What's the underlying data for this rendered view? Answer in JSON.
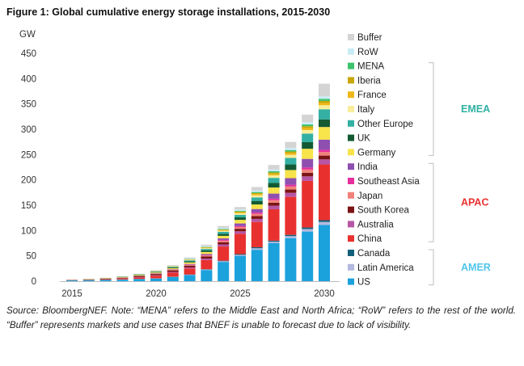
{
  "figure_title": "Figure 1: Global cumulative energy storage installations, 2015-2030",
  "caption": "Source: BloombergNEF. Note: “MENA” refers to the Middle East and North Africa; “RoW” refers to the rest of the world. “Buffer” represents markets and use cases that BNEF is unable to forecast due to lack of visibility.",
  "chart_data": {
    "type": "bar",
    "stacked": true,
    "ylabel": "GW",
    "ylim": [
      0,
      450
    ],
    "yticks": [
      0,
      50,
      100,
      150,
      200,
      250,
      300,
      350,
      400,
      450
    ],
    "xtick_labels": [
      "2015",
      "2020",
      "2025",
      "2030"
    ],
    "categories": [
      "2015",
      "2016",
      "2017",
      "2018",
      "2019",
      "2020",
      "2021",
      "2022",
      "2023",
      "2024",
      "2025",
      "2026",
      "2027",
      "2028",
      "2029",
      "2030"
    ],
    "grid": false,
    "legend_position": "right",
    "series": [
      {
        "name": "US",
        "color": "#1ba1dc",
        "values": [
          1.5,
          2,
          2.5,
          3,
          4,
          5,
          8,
          12,
          22,
          38,
          50,
          62,
          75,
          85,
          98,
          111
        ]
      },
      {
        "name": "Latin America",
        "color": "#b3b9df",
        "values": [
          0.1,
          0.1,
          0.2,
          0.2,
          0.3,
          0.4,
          0.5,
          0.7,
          1,
          1.5,
          2,
          3,
          3,
          4,
          5,
          6
        ]
      },
      {
        "name": "Canada",
        "color": "#14607a",
        "values": [
          0.1,
          0.1,
          0.1,
          0.2,
          0.2,
          0.3,
          0.4,
          0.5,
          0.7,
          1,
          1.5,
          2,
          2,
          2.5,
          3,
          3.5
        ]
      },
      {
        "name": "China",
        "color": "#e8312f",
        "values": [
          0.5,
          0.8,
          1.2,
          2,
          3,
          5,
          8,
          12,
          18,
          28,
          40,
          50,
          62,
          75,
          92,
          110
        ]
      },
      {
        "name": "Australia",
        "color": "#b756a5",
        "values": [
          0.1,
          0.1,
          0.2,
          0.3,
          0.5,
          1,
          1.5,
          2,
          3,
          4,
          5,
          6,
          7,
          8,
          9,
          10
        ]
      },
      {
        "name": "South Korea",
        "color": "#7b1414",
        "values": [
          0.2,
          0.4,
          0.7,
          1,
          2,
          2.5,
          3,
          3.5,
          4,
          4.5,
          5,
          5.5,
          6,
          6.5,
          7,
          7.5
        ]
      },
      {
        "name": "Japan",
        "color": "#f0827a",
        "values": [
          0.1,
          0.1,
          0.2,
          0.3,
          0.5,
          0.8,
          1,
          1.5,
          2,
          3,
          3.5,
          4.5,
          5,
          6,
          6.5,
          7
        ]
      },
      {
        "name": "Southeast Asia",
        "color": "#e62e9d",
        "values": [
          0,
          0,
          0.1,
          0.1,
          0.2,
          0.3,
          0.5,
          0.7,
          1,
          1.5,
          2,
          2.5,
          3,
          3.5,
          4,
          4.5
        ]
      },
      {
        "name": "India",
        "color": "#8e4fb0",
        "values": [
          0,
          0,
          0,
          0.1,
          0.2,
          0.4,
          0.7,
          1.2,
          2,
          3,
          5,
          7,
          10,
          13,
          17,
          20
        ]
      },
      {
        "name": "Germany",
        "color": "#f7e34b",
        "values": [
          0.2,
          0.3,
          0.5,
          0.7,
          1,
          1.5,
          2,
          3,
          4,
          5,
          7,
          9,
          12,
          16,
          20,
          25
        ]
      },
      {
        "name": "UK",
        "color": "#135a33",
        "values": [
          0.1,
          0.2,
          0.3,
          0.5,
          0.8,
          1,
          1.5,
          2,
          3,
          4,
          5,
          7,
          9,
          11,
          13,
          15
        ]
      },
      {
        "name": "Other Europe",
        "color": "#33b0a3",
        "values": [
          0.1,
          0.2,
          0.3,
          0.4,
          0.6,
          0.8,
          1,
          2,
          3,
          4,
          5,
          7,
          10,
          13,
          17,
          20
        ]
      },
      {
        "name": "Italy",
        "color": "#f8ee9a",
        "values": [
          0,
          0.1,
          0.1,
          0.2,
          0.3,
          0.4,
          0.6,
          1,
          1.5,
          2,
          3,
          4,
          5,
          6,
          7,
          8
        ]
      },
      {
        "name": "France",
        "color": "#efb817",
        "values": [
          0,
          0.1,
          0.1,
          0.2,
          0.3,
          0.4,
          0.5,
          0.7,
          1,
          1.5,
          2,
          2.5,
          3,
          3.5,
          4,
          4.5
        ]
      },
      {
        "name": "Iberia",
        "color": "#c9a708",
        "values": [
          0,
          0,
          0.1,
          0.1,
          0.2,
          0.3,
          0.4,
          0.5,
          0.7,
          1,
          1.5,
          2,
          2.5,
          3,
          3.5,
          4
        ]
      },
      {
        "name": "MENA",
        "color": "#3cc26a",
        "values": [
          0,
          0,
          0,
          0.1,
          0.1,
          0.2,
          0.3,
          0.5,
          0.7,
          1,
          1.5,
          2,
          2.5,
          3,
          3.5,
          4
        ]
      },
      {
        "name": "RoW",
        "color": "#c9ecf5",
        "values": [
          0.1,
          0.1,
          0.2,
          0.3,
          0.4,
          0.5,
          0.7,
          1,
          1.5,
          2,
          2.5,
          3,
          3.5,
          4,
          4.5,
          5
        ]
      },
      {
        "name": "Buffer",
        "color": "#d4d4d4",
        "values": [
          0,
          0,
          0.1,
          0.2,
          0.4,
          1,
          1.4,
          2,
          3,
          4,
          5,
          7,
          9,
          12,
          15,
          25
        ]
      }
    ],
    "region_groups": [
      {
        "name": "EMEA",
        "color": "#2fb2a3",
        "members": [
          "Germany",
          "UK",
          "Other Europe",
          "Italy",
          "France",
          "Iberia",
          "MENA"
        ]
      },
      {
        "name": "APAC",
        "color": "#e8312f",
        "members": [
          "China",
          "Australia",
          "South Korea",
          "Japan",
          "Southeast Asia",
          "India"
        ]
      },
      {
        "name": "AMER",
        "color": "#4fc6ea",
        "members": [
          "US",
          "Latin America",
          "Canada"
        ]
      }
    ]
  }
}
